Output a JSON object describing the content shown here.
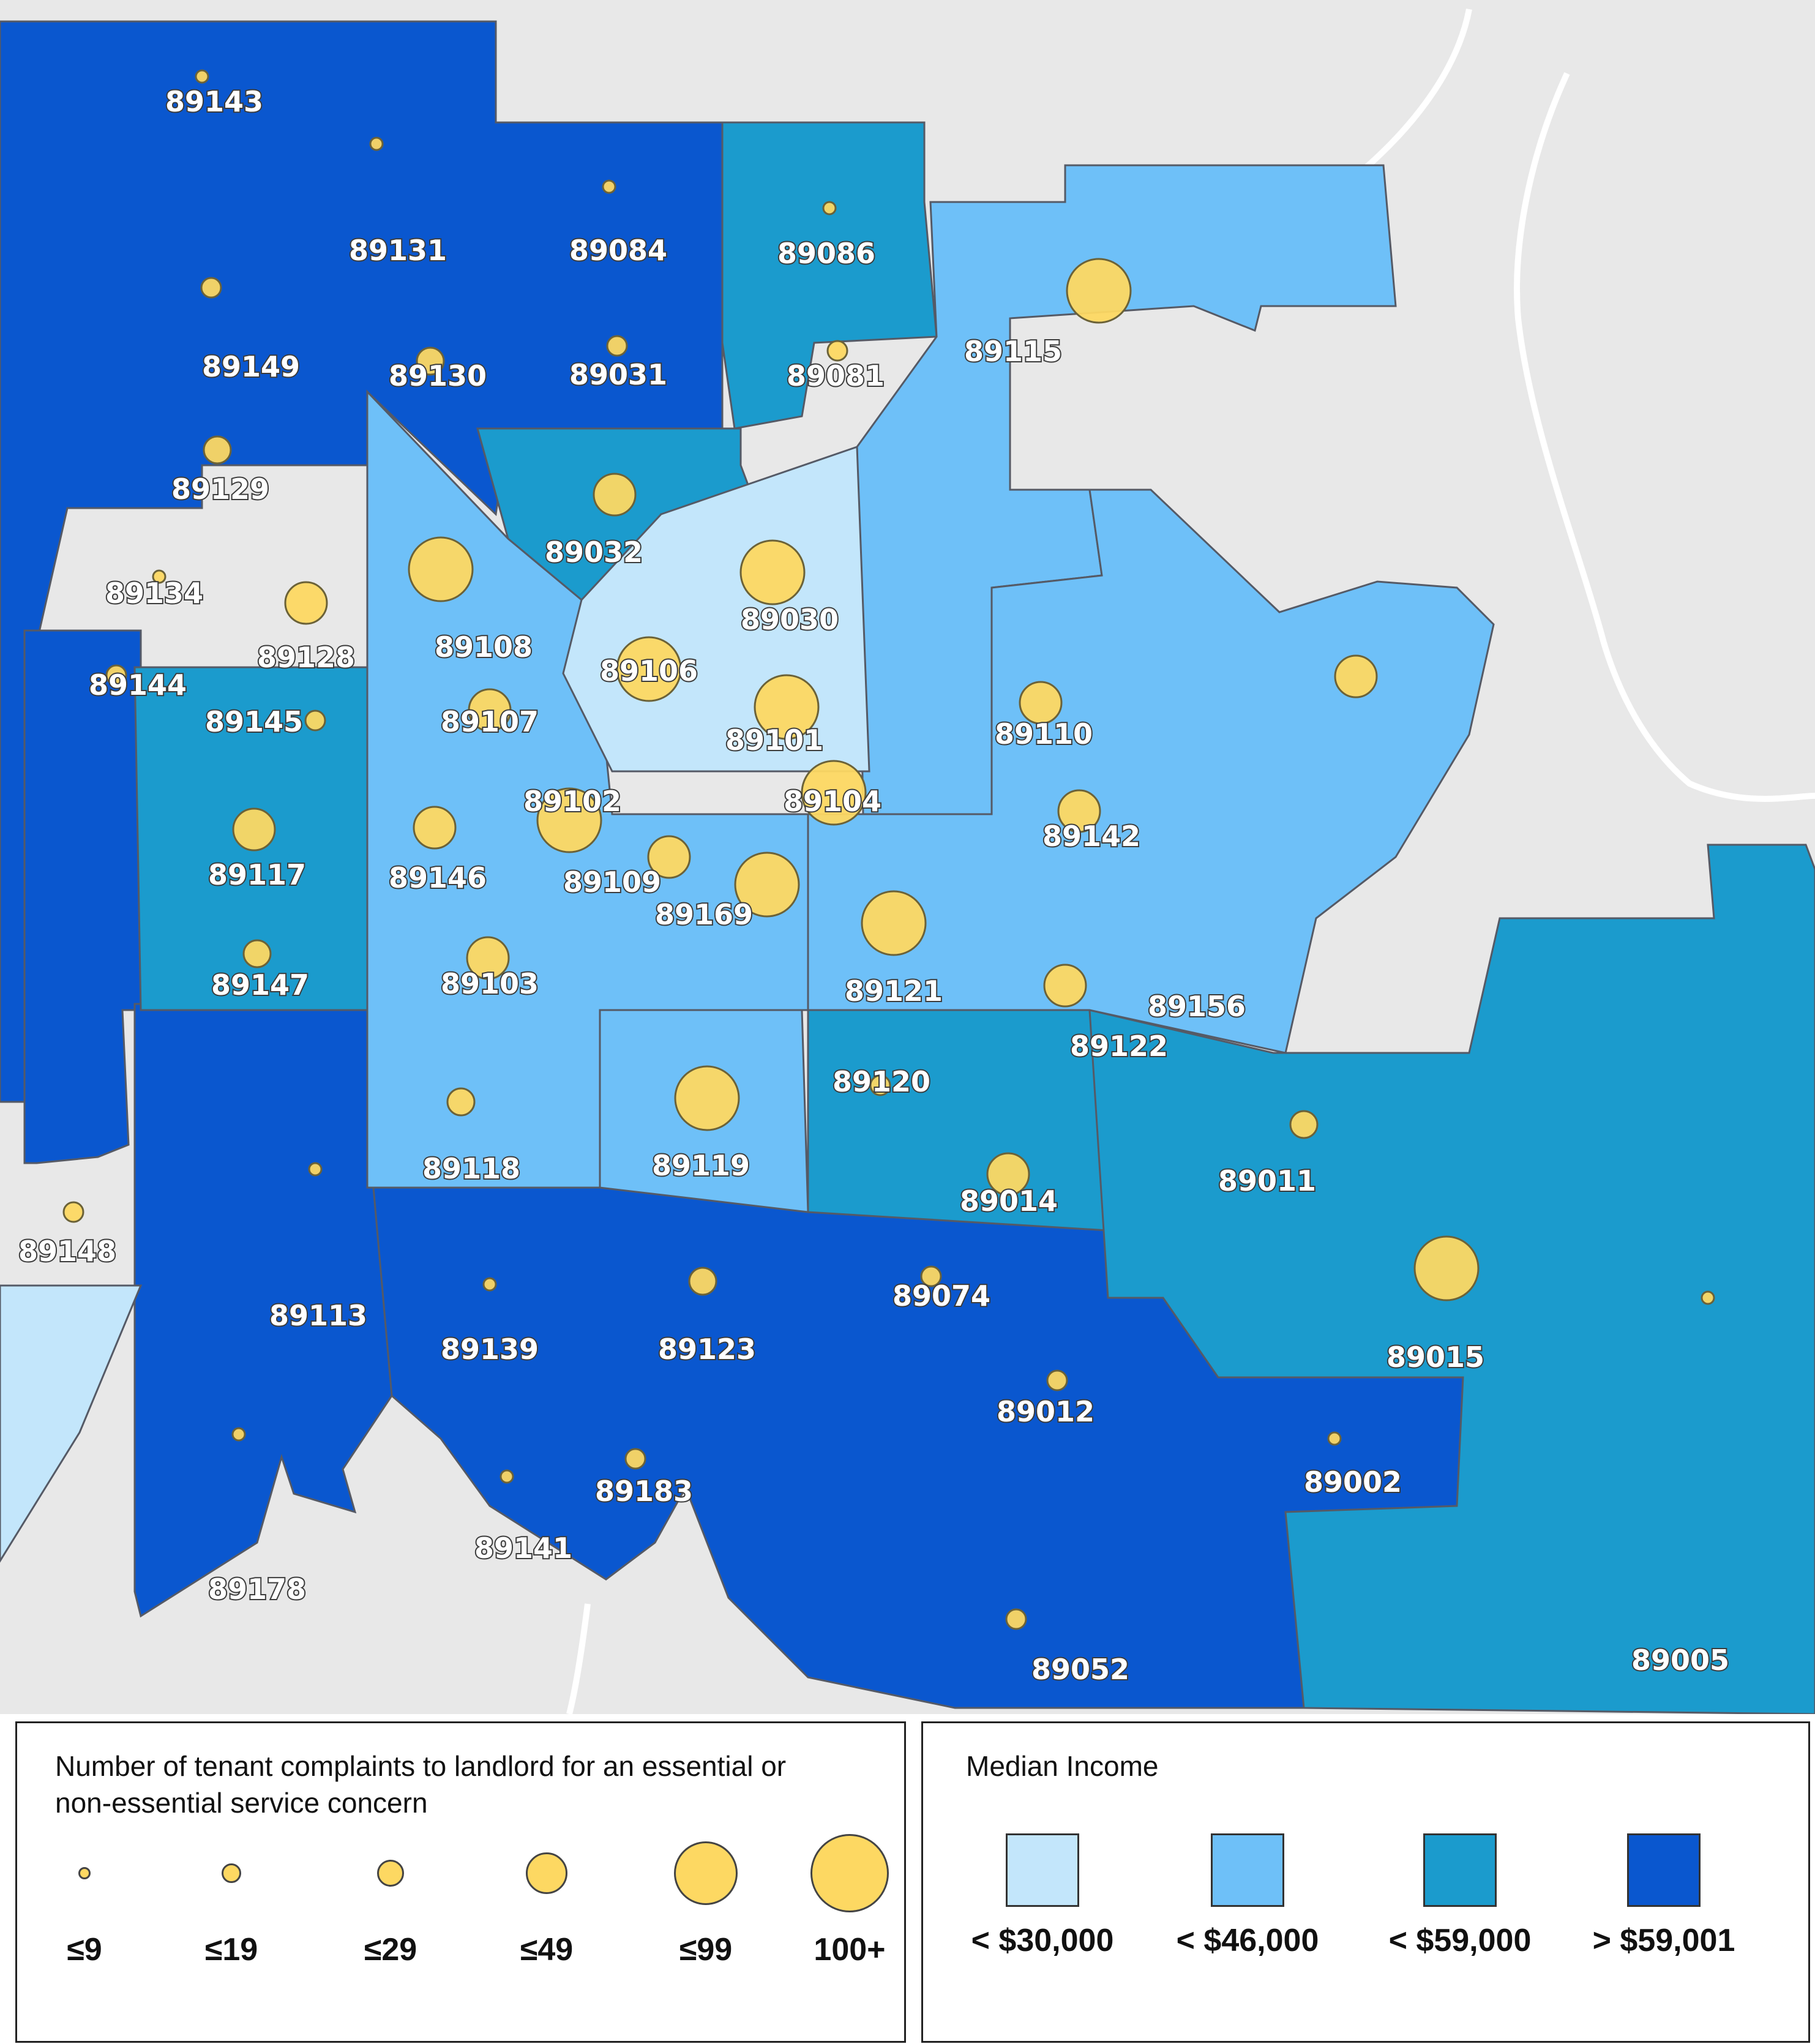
{
  "colors": {
    "background": "#e8e8e8",
    "road": "#ffffff",
    "lt30k": "#c3e6fb",
    "lt46k": "#6ec0f8",
    "lt59k": "#1b9bcd",
    "gt59k": "#0a57cf",
    "complaint_circle": "#fdd862",
    "boundary": "#555a66"
  },
  "complaints_legend": {
    "title_line1": "Number of tenant complaints to landlord for an essential or",
    "title_line2": "non-essential service concern",
    "classes": [
      {
        "label": "≤9"
      },
      {
        "label": "≤19"
      },
      {
        "label": "≤29"
      },
      {
        "label": "≤49"
      },
      {
        "label": "≤99"
      },
      {
        "label": "100+"
      }
    ]
  },
  "income_legend": {
    "title": "Median Income",
    "classes": [
      {
        "label": "< $30,000",
        "color_key": "lt30k"
      },
      {
        "label": "< $46,000",
        "color_key": "lt46k"
      },
      {
        "label": "< $59,000",
        "color_key": "lt59k"
      },
      {
        "label": "> $59,001",
        "color_key": "gt59k"
      }
    ]
  },
  "zip_labels": [
    "89143",
    "89131",
    "89084",
    "89086",
    "89115",
    "89149",
    "89130",
    "89031",
    "89081",
    "89129",
    "89032",
    "89030",
    "89134",
    "89128",
    "89108",
    "89106",
    "89144",
    "89145",
    "89107",
    "89101",
    "89110",
    "89102",
    "89104",
    "89142",
    "89117",
    "89146",
    "89109",
    "89169",
    "89147",
    "89103",
    "89121",
    "89156",
    "89122",
    "89120",
    "89118",
    "89119",
    "89014",
    "89011",
    "89148",
    "89113",
    "89139",
    "89123",
    "89074",
    "89015",
    "89012",
    "89002",
    "89183",
    "89141",
    "89178",
    "89052",
    "89005"
  ]
}
